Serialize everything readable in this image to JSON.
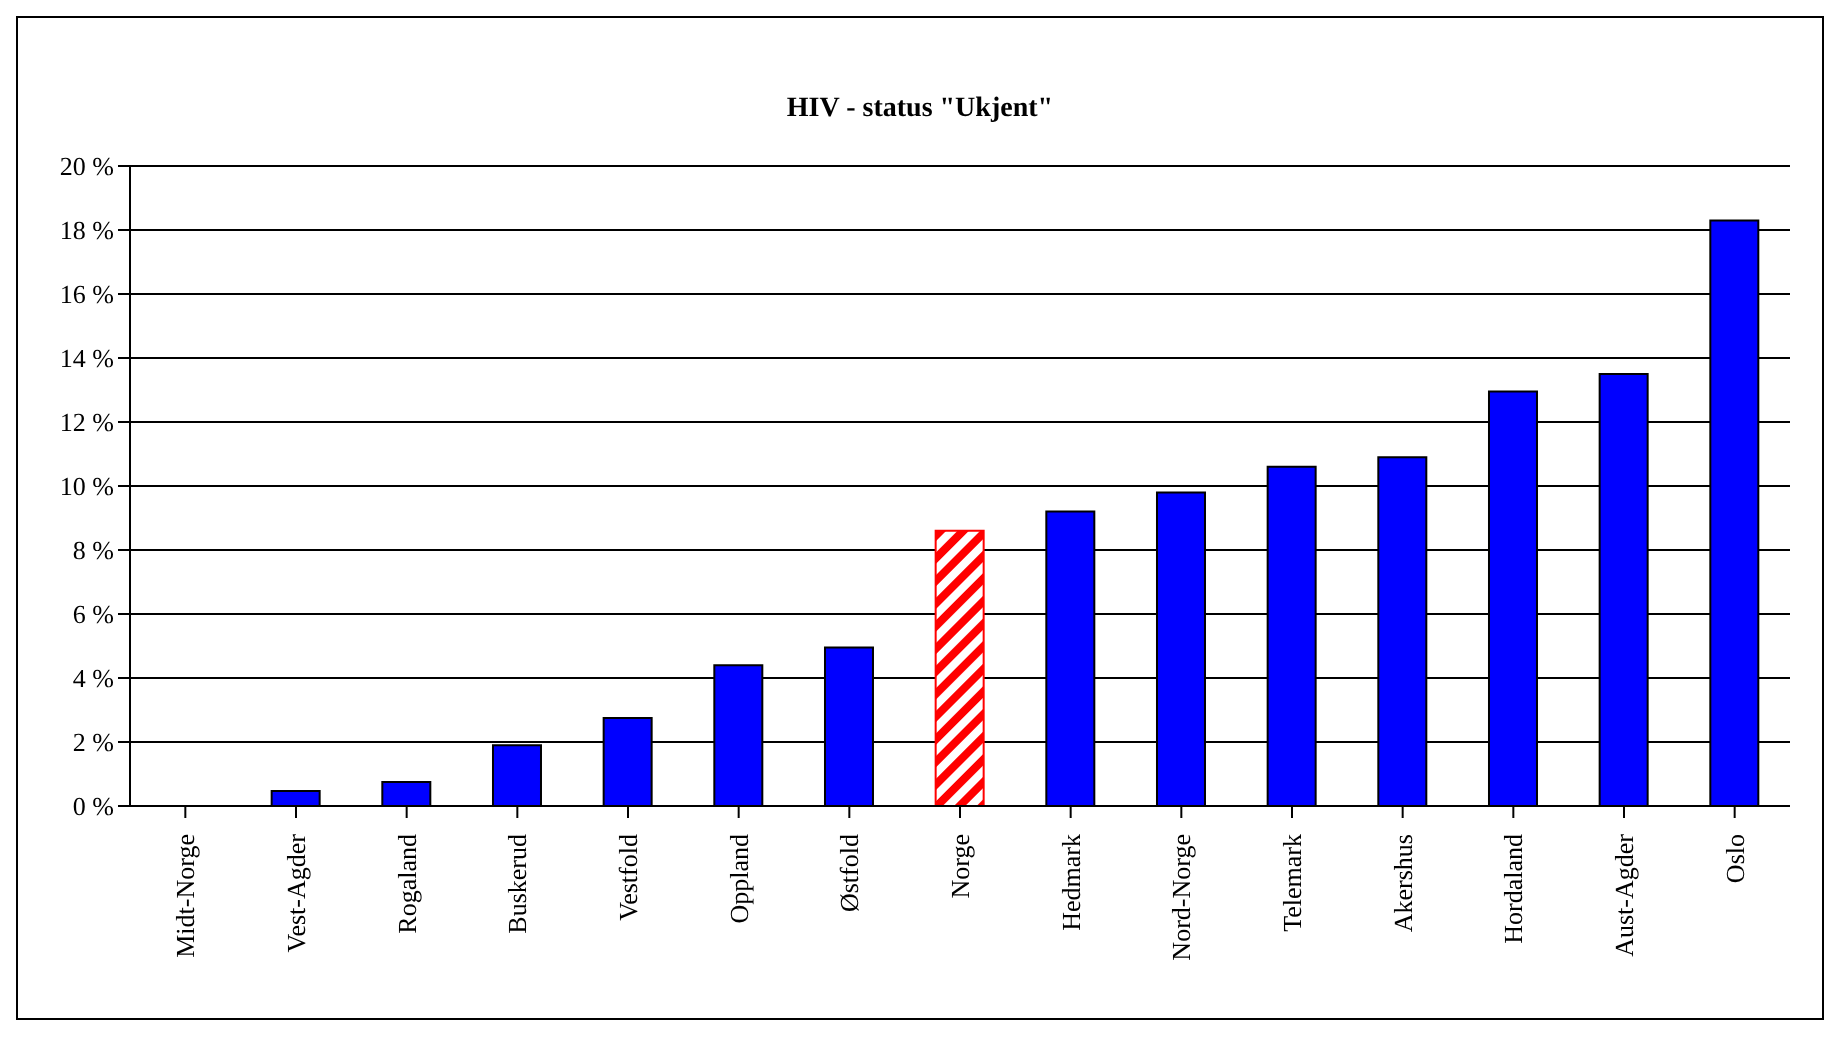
{
  "chart_data": {
    "type": "bar",
    "title": "HIV - status  \"Ukjent\"",
    "categories": [
      "Midt-Norge",
      "Vest-Agder",
      "Rogaland",
      "Buskerud",
      "Vestfold",
      "Oppland",
      "Østfold",
      "Norge",
      "Hedmark",
      "Nord-Norge",
      "Telemark",
      "Akershus",
      "Hordaland",
      "Aust-Agder",
      "Oslo"
    ],
    "values": [
      0,
      0.47,
      0.75,
      1.9,
      2.75,
      4.4,
      4.95,
      8.6,
      9.2,
      9.8,
      10.6,
      10.9,
      12.95,
      13.5,
      18.3
    ],
    "colors": [
      "#0000ff",
      "#0000ff",
      "#0000ff",
      "#0000ff",
      "#0000ff",
      "#0000ff",
      "#0000ff",
      "#ff0000",
      "#0000ff",
      "#0000ff",
      "#0000ff",
      "#0000ff",
      "#0000ff",
      "#0000ff",
      "#0000ff"
    ],
    "ylim": [
      0,
      20
    ],
    "yticks": [
      {
        "value": 0,
        "label": "0 %"
      },
      {
        "value": 2,
        "label": "2 %"
      },
      {
        "value": 4,
        "label": "4 %"
      },
      {
        "value": 6,
        "label": "6 %"
      },
      {
        "value": 8,
        "label": "8 %"
      },
      {
        "value": 10,
        "label": "10 %"
      },
      {
        "value": 12,
        "label": "12 %"
      },
      {
        "value": 14,
        "label": "14 %"
      },
      {
        "value": 16,
        "label": "16 %"
      },
      {
        "value": 18,
        "label": "18 %"
      },
      {
        "value": 20,
        "label": "20 %"
      }
    ],
    "grid": "y"
  }
}
